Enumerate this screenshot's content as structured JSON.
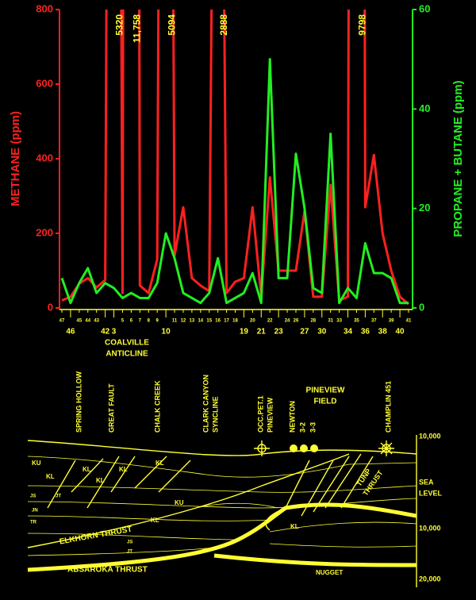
{
  "chart_data": {
    "type": "line",
    "y_label": "METHANE (ppm)",
    "y2_label": "PROPANE + BUTANE (ppm)",
    "categories": [
      "47",
      "46",
      "45",
      "44",
      "43",
      "42",
      "3",
      "5",
      "6",
      "7",
      "8",
      "9",
      "10",
      "11",
      "12",
      "13",
      "14",
      "15",
      "16",
      "17",
      "18",
      "19",
      "20",
      "21",
      "22",
      "23",
      "24",
      "26",
      "27",
      "28",
      "30",
      "31",
      "33",
      "34",
      "35",
      "36",
      "37",
      "38",
      "39",
      "40",
      "41"
    ],
    "category_emphasis": [
      false,
      true,
      false,
      false,
      false,
      true,
      true,
      false,
      false,
      false,
      false,
      false,
      true,
      false,
      false,
      false,
      false,
      false,
      false,
      false,
      false,
      true,
      false,
      true,
      false,
      true,
      false,
      false,
      true,
      false,
      true,
      false,
      false,
      true,
      false,
      true,
      false,
      true,
      false,
      true,
      false
    ],
    "series": [
      {
        "name": "METHANE",
        "color": "#ff2020",
        "axis": "y",
        "values": [
          20,
          30,
          65,
          80,
          55,
          75,
          5320,
          40,
          11758,
          60,
          40,
          130,
          5094,
          140,
          270,
          80,
          60,
          45,
          2888,
          40,
          70,
          80,
          270,
          30,
          350,
          100,
          100,
          100,
          260,
          30,
          30,
          330,
          20,
          30,
          9798,
          270,
          410,
          200,
          100,
          30,
          10
        ],
        "value_labels": [
          null,
          null,
          null,
          null,
          null,
          null,
          "5320",
          null,
          "11,758",
          null,
          null,
          null,
          "5094",
          null,
          null,
          null,
          null,
          null,
          "2888",
          null,
          null,
          null,
          null,
          null,
          null,
          null,
          null,
          null,
          null,
          null,
          null,
          null,
          null,
          null,
          "9798",
          null,
          null,
          null,
          null,
          null,
          null
        ]
      },
      {
        "name": "PROPANE + BUTANE",
        "color": "#22ee22",
        "axis": "y2",
        "values": [
          6,
          1,
          5,
          8,
          3,
          5,
          4,
          2,
          3,
          2,
          2,
          5,
          15,
          10,
          3,
          2,
          1,
          3,
          10,
          1,
          2,
          3,
          7,
          1,
          50,
          6,
          6,
          31,
          20,
          4,
          3,
          35,
          1,
          4,
          2,
          13,
          7,
          7,
          6,
          1,
          1
        ]
      }
    ],
    "ylim": [
      0,
      800
    ],
    "yticks": [
      0,
      200,
      400,
      600,
      800
    ],
    "y2lim": [
      0,
      60
    ],
    "y2ticks": [
      0,
      20,
      40,
      60
    ],
    "annotations": [
      "COALVILLE",
      "ANTICLINE"
    ]
  },
  "cross_section": {
    "wells": [
      "SPRING HOLLOW",
      "GREAT FAULT",
      "CHALK CREEK",
      "CLARK CANYON",
      "SYNCLINE",
      "OCC.PET.1",
      "PINEVIEW",
      "NEWTON",
      "3-2",
      "3-3",
      "CHAMPLIN 451"
    ],
    "field_label": [
      "PINEVIEW",
      "FIELD"
    ],
    "depth_labels": [
      "10,000",
      "SEA",
      "LEVEL",
      "10,000",
      "20,000"
    ],
    "formations": [
      "KU",
      "KL",
      "KL",
      "KL",
      "KL",
      "KL",
      "KU",
      "JS",
      "JT",
      "JN",
      "TR",
      "KL",
      "JS",
      "JT",
      "KL"
    ],
    "structures": [
      "ELKHORN THRUST",
      "ABSAROKA THRUST",
      "NUGGET",
      "TUNP",
      "THRUST"
    ]
  }
}
